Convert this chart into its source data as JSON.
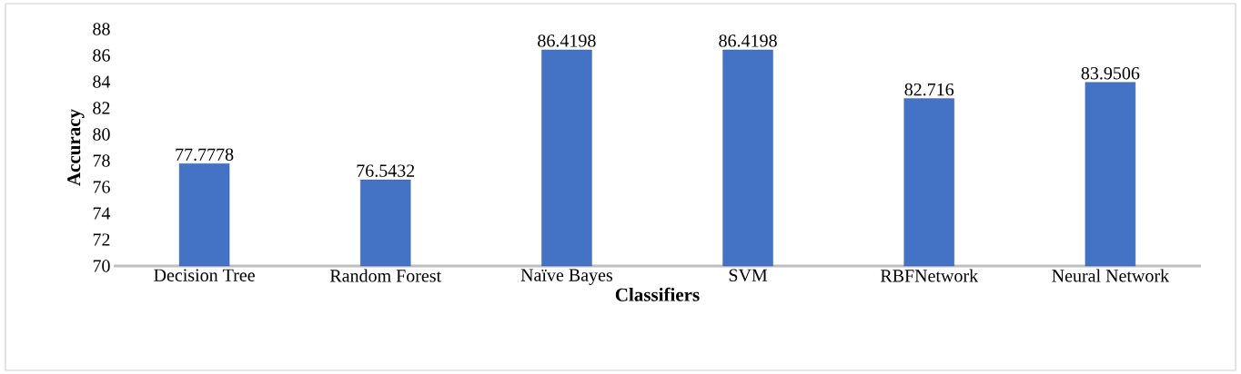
{
  "chart_data": {
    "type": "bar",
    "xlabel": "Classifiers",
    "ylabel": "Accuracy",
    "categories": [
      "Decision Tree",
      "Random Forest",
      "Naïve Bayes",
      "SVM",
      "RBFNetwork",
      "Neural Network"
    ],
    "values": [
      77.7778,
      76.5432,
      86.4198,
      86.4198,
      82.716,
      83.9506
    ],
    "color": "#4472c4",
    "ylim": [
      70,
      88
    ],
    "yticks": [
      70,
      72,
      74,
      76,
      78,
      80,
      82,
      84,
      86,
      88
    ],
    "data_labels": true,
    "grid": false
  }
}
